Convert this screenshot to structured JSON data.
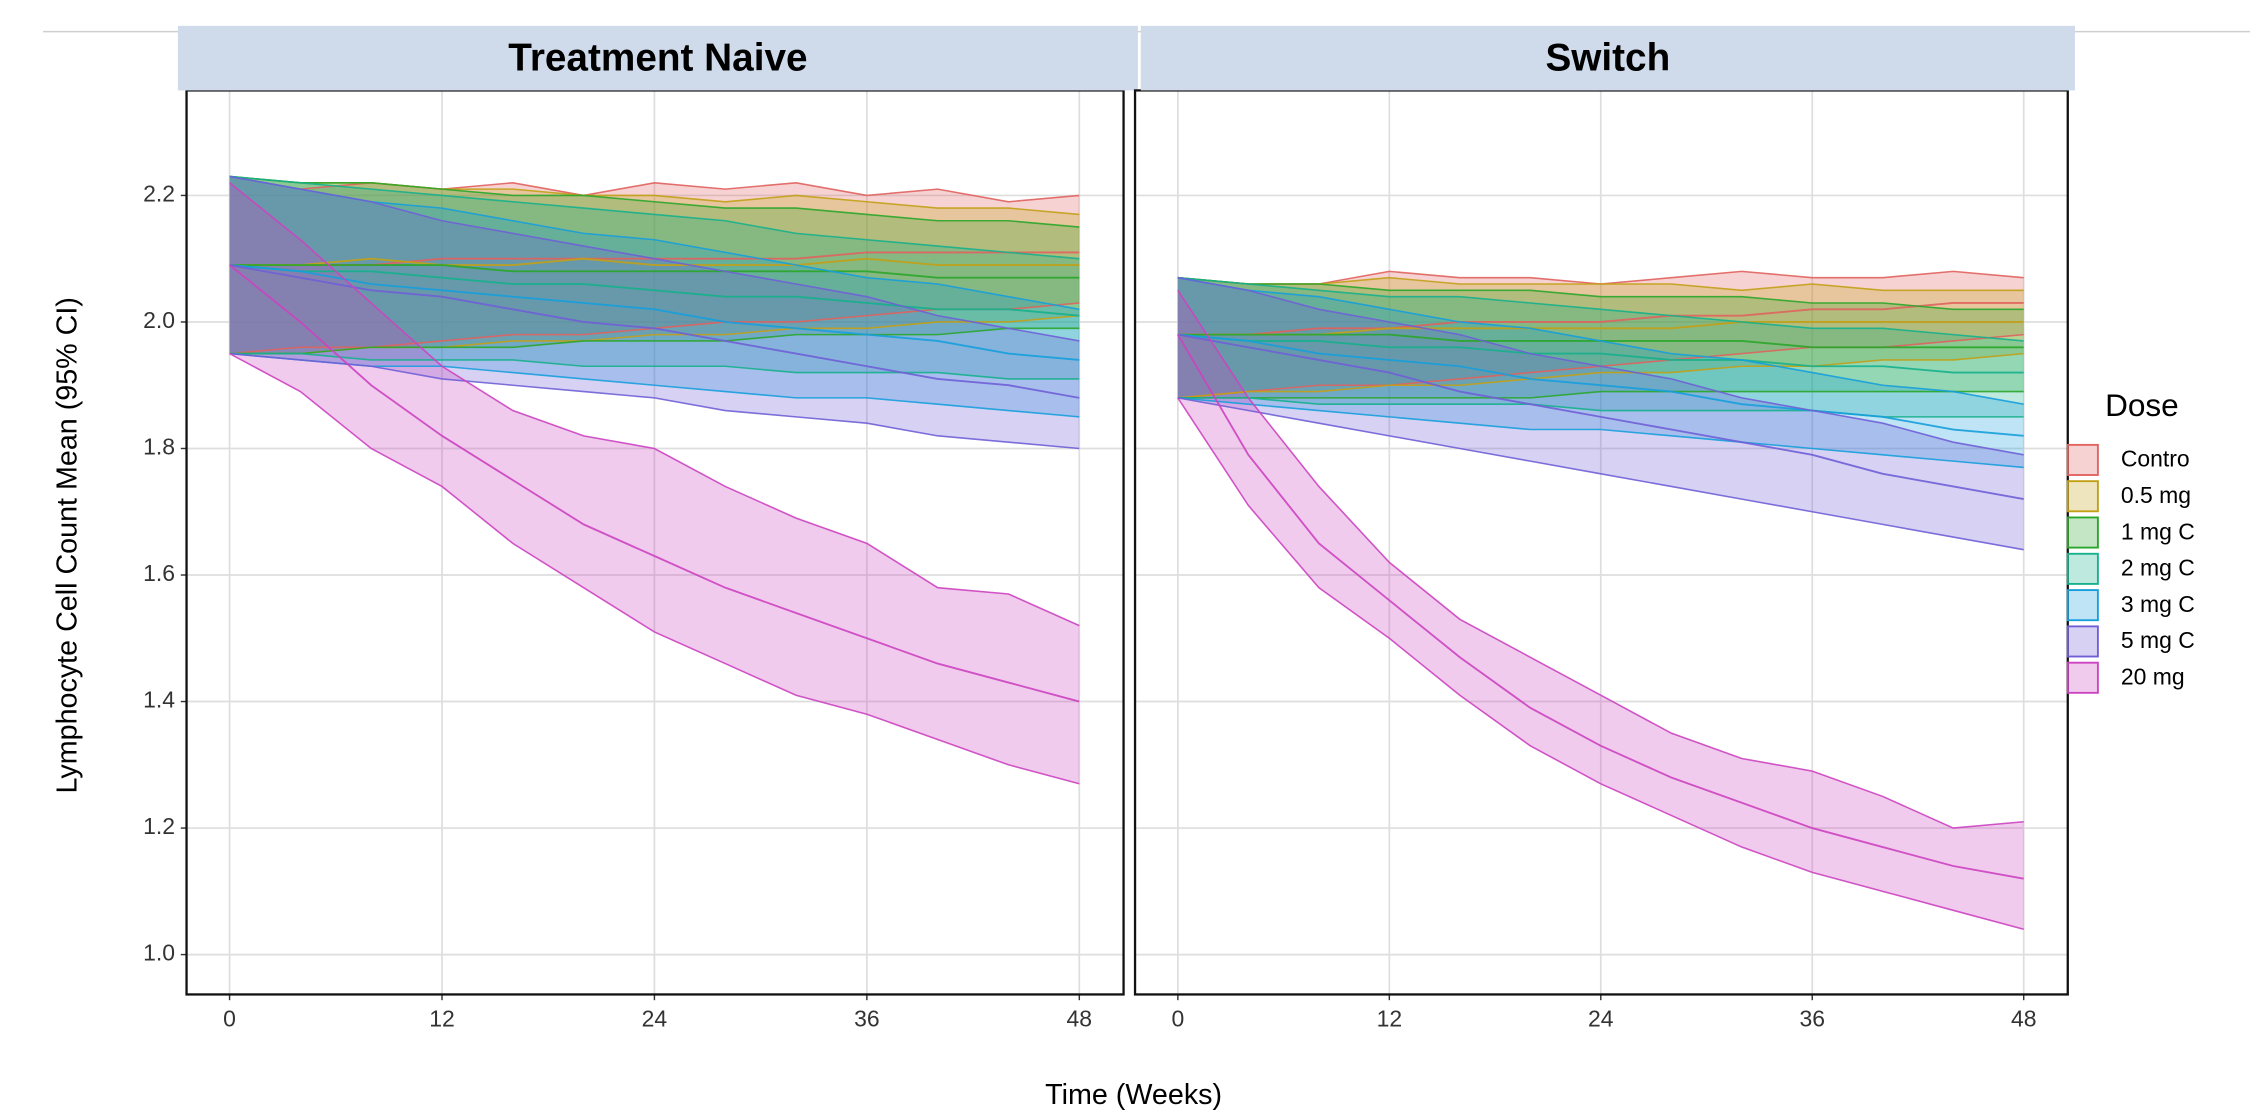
{
  "chart_data": {
    "type": "ribbon",
    "y_label": "Lymphocyte Cell Count Mean (95% CI)",
    "x_label": "Time (Weeks)",
    "legend_title": "Dose",
    "xlim": [
      -2.43,
      50.5
    ],
    "xticks": [
      0,
      12,
      24,
      36,
      48
    ],
    "ylim": [
      0.937,
      2.366
    ],
    "yticks": [
      {
        "value": 1,
        "label": "1.0"
      },
      1.2,
      1.4,
      1.6,
      1.8,
      {
        "value": 2,
        "label": "2.0"
      },
      2.2
    ],
    "grid": true,
    "x": [
      0,
      4,
      8,
      12,
      16,
      20,
      24,
      28,
      32,
      36,
      40,
      44,
      48
    ],
    "series": [
      {
        "name": "Contro",
        "color": "#e0625e"
      },
      {
        "name": "0.5 mg",
        "color": "#c2a016"
      },
      {
        "name": "1 mg C",
        "color": "#2aa62a"
      },
      {
        "name": "2 mg C",
        "color": "#16b08c"
      },
      {
        "name": "3 mg C",
        "color": "#169fdb"
      },
      {
        "name": "5 mg C",
        "color": "#6f5fd6"
      },
      {
        "name": "20 mg",
        "color": "#cc43c0"
      }
    ],
    "panels": [
      {
        "title": "Treatment Naive",
        "series": [
          {
            "values": [
              2.09,
              2.09,
              2.09,
              2.1,
              2.1,
              2.1,
              2.1,
              2.1,
              2.1,
              2.11,
              2.11,
              2.11,
              2.11
            ],
            "lower": [
              1.95,
              1.96,
              1.96,
              1.97,
              1.98,
              1.98,
              1.99,
              2.0,
              2.0,
              2.01,
              2.02,
              2.02,
              2.03
            ],
            "upper": [
              2.23,
              2.21,
              2.22,
              2.21,
              2.22,
              2.2,
              2.22,
              2.21,
              2.22,
              2.2,
              2.21,
              2.19,
              2.2
            ]
          },
          {
            "values": [
              2.09,
              2.09,
              2.1,
              2.09,
              2.09,
              2.1,
              2.09,
              2.09,
              2.09,
              2.1,
              2.09,
              2.09,
              2.09
            ],
            "lower": [
              1.95,
              1.95,
              1.96,
              1.96,
              1.97,
              1.97,
              1.98,
              1.98,
              1.99,
              1.99,
              2.0,
              2.0,
              2.01
            ],
            "upper": [
              2.23,
              2.22,
              2.22,
              2.21,
              2.21,
              2.2,
              2.2,
              2.19,
              2.2,
              2.19,
              2.18,
              2.18,
              2.17
            ]
          },
          {
            "values": [
              2.09,
              2.09,
              2.09,
              2.09,
              2.08,
              2.08,
              2.08,
              2.08,
              2.08,
              2.08,
              2.07,
              2.07,
              2.07
            ],
            "lower": [
              1.95,
              1.95,
              1.96,
              1.96,
              1.96,
              1.97,
              1.97,
              1.97,
              1.98,
              1.98,
              1.98,
              1.99,
              1.99
            ],
            "upper": [
              2.23,
              2.22,
              2.22,
              2.21,
              2.2,
              2.2,
              2.19,
              2.18,
              2.18,
              2.17,
              2.16,
              2.16,
              2.15
            ]
          },
          {
            "values": [
              2.09,
              2.08,
              2.08,
              2.07,
              2.06,
              2.06,
              2.05,
              2.04,
              2.04,
              2.03,
              2.02,
              2.02,
              2.01
            ],
            "lower": [
              1.95,
              1.95,
              1.94,
              1.94,
              1.94,
              1.93,
              1.93,
              1.93,
              1.92,
              1.92,
              1.92,
              1.91,
              1.91
            ],
            "upper": [
              2.23,
              2.22,
              2.21,
              2.2,
              2.19,
              2.18,
              2.17,
              2.16,
              2.14,
              2.13,
              2.12,
              2.11,
              2.1
            ]
          },
          {
            "values": [
              2.09,
              2.08,
              2.06,
              2.05,
              2.04,
              2.03,
              2.02,
              2.0,
              1.99,
              1.98,
              1.97,
              1.95,
              1.94
            ],
            "lower": [
              1.95,
              1.94,
              1.93,
              1.93,
              1.92,
              1.91,
              1.9,
              1.89,
              1.88,
              1.88,
              1.87,
              1.86,
              1.85
            ],
            "upper": [
              2.23,
              2.21,
              2.19,
              2.18,
              2.16,
              2.14,
              2.13,
              2.11,
              2.09,
              2.07,
              2.06,
              2.04,
              2.02
            ]
          },
          {
            "values": [
              2.09,
              2.07,
              2.05,
              2.04,
              2.02,
              2.0,
              1.99,
              1.97,
              1.95,
              1.93,
              1.91,
              1.9,
              1.88
            ],
            "lower": [
              1.95,
              1.94,
              1.93,
              1.91,
              1.9,
              1.89,
              1.88,
              1.86,
              1.85,
              1.84,
              1.82,
              1.81,
              1.8
            ],
            "upper": [
              2.23,
              2.21,
              2.19,
              2.16,
              2.14,
              2.12,
              2.1,
              2.08,
              2.06,
              2.04,
              2.01,
              1.99,
              1.97
            ]
          },
          {
            "values": [
              2.09,
              2.0,
              1.9,
              1.82,
              1.75,
              1.68,
              1.63,
              1.58,
              1.54,
              1.5,
              1.46,
              1.43,
              1.4
            ],
            "lower": [
              1.95,
              1.89,
              1.8,
              1.74,
              1.65,
              1.58,
              1.51,
              1.46,
              1.41,
              1.38,
              1.34,
              1.3,
              1.27
            ],
            "upper": [
              2.22,
              2.13,
              2.03,
              1.93,
              1.86,
              1.82,
              1.8,
              1.74,
              1.69,
              1.65,
              1.58,
              1.57,
              1.52
            ]
          }
        ]
      },
      {
        "title": "Switch",
        "series": [
          {
            "values": [
              1.98,
              1.98,
              1.99,
              1.99,
              2.0,
              2.0,
              2.0,
              2.01,
              2.01,
              2.02,
              2.02,
              2.03,
              2.03
            ],
            "lower": [
              1.88,
              1.89,
              1.9,
              1.9,
              1.91,
              1.92,
              1.93,
              1.94,
              1.95,
              1.96,
              1.96,
              1.97,
              1.98
            ],
            "upper": [
              2.07,
              2.06,
              2.06,
              2.08,
              2.07,
              2.07,
              2.06,
              2.07,
              2.08,
              2.07,
              2.07,
              2.08,
              2.07
            ]
          },
          {
            "values": [
              1.98,
              1.98,
              1.98,
              1.99,
              1.99,
              1.99,
              1.99,
              1.99,
              2.0,
              2.0,
              2.0,
              2.0,
              2.0
            ],
            "lower": [
              1.88,
              1.89,
              1.89,
              1.9,
              1.9,
              1.91,
              1.92,
              1.92,
              1.93,
              1.93,
              1.94,
              1.94,
              1.95
            ],
            "upper": [
              2.07,
              2.06,
              2.06,
              2.07,
              2.06,
              2.06,
              2.06,
              2.06,
              2.05,
              2.06,
              2.05,
              2.05,
              2.05
            ]
          },
          {
            "values": [
              1.98,
              1.98,
              1.98,
              1.98,
              1.97,
              1.97,
              1.97,
              1.97,
              1.97,
              1.96,
              1.96,
              1.96,
              1.96
            ],
            "lower": [
              1.88,
              1.88,
              1.88,
              1.88,
              1.88,
              1.88,
              1.89,
              1.89,
              1.89,
              1.89,
              1.89,
              1.89,
              1.89
            ],
            "upper": [
              2.07,
              2.06,
              2.06,
              2.05,
              2.05,
              2.05,
              2.04,
              2.04,
              2.04,
              2.03,
              2.03,
              2.02,
              2.02
            ]
          },
          {
            "values": [
              1.98,
              1.97,
              1.97,
              1.96,
              1.96,
              1.95,
              1.95,
              1.94,
              1.94,
              1.93,
              1.93,
              1.92,
              1.92
            ],
            "lower": [
              1.88,
              1.88,
              1.87,
              1.87,
              1.87,
              1.87,
              1.86,
              1.86,
              1.86,
              1.86,
              1.85,
              1.85,
              1.85
            ],
            "upper": [
              2.07,
              2.06,
              2.05,
              2.04,
              2.04,
              2.03,
              2.02,
              2.01,
              2.0,
              1.99,
              1.99,
              1.98,
              1.97
            ]
          },
          {
            "values": [
              1.98,
              1.97,
              1.95,
              1.94,
              1.93,
              1.91,
              1.9,
              1.89,
              1.87,
              1.86,
              1.85,
              1.83,
              1.82
            ],
            "lower": [
              1.88,
              1.87,
              1.86,
              1.85,
              1.84,
              1.83,
              1.83,
              1.82,
              1.81,
              1.8,
              1.79,
              1.78,
              1.77
            ],
            "upper": [
              2.07,
              2.05,
              2.04,
              2.02,
              2.0,
              1.99,
              1.97,
              1.95,
              1.94,
              1.92,
              1.9,
              1.89,
              1.87
            ]
          },
          {
            "values": [
              1.98,
              1.96,
              1.94,
              1.92,
              1.89,
              1.87,
              1.85,
              1.83,
              1.81,
              1.79,
              1.76,
              1.74,
              1.72
            ],
            "lower": [
              1.88,
              1.86,
              1.84,
              1.82,
              1.8,
              1.78,
              1.76,
              1.74,
              1.72,
              1.7,
              1.68,
              1.66,
              1.64
            ],
            "upper": [
              2.07,
              2.05,
              2.02,
              2.0,
              1.98,
              1.95,
              1.93,
              1.91,
              1.88,
              1.86,
              1.84,
              1.81,
              1.79
            ]
          },
          {
            "values": [
              1.98,
              1.79,
              1.65,
              1.56,
              1.47,
              1.39,
              1.33,
              1.28,
              1.24,
              1.2,
              1.17,
              1.14,
              1.12
            ],
            "lower": [
              1.88,
              1.71,
              1.58,
              1.5,
              1.41,
              1.33,
              1.27,
              1.22,
              1.17,
              1.13,
              1.1,
              1.07,
              1.04
            ],
            "upper": [
              2.05,
              1.88,
              1.74,
              1.62,
              1.53,
              1.47,
              1.41,
              1.35,
              1.31,
              1.29,
              1.25,
              1.2,
              1.21
            ]
          }
        ]
      }
    ]
  }
}
